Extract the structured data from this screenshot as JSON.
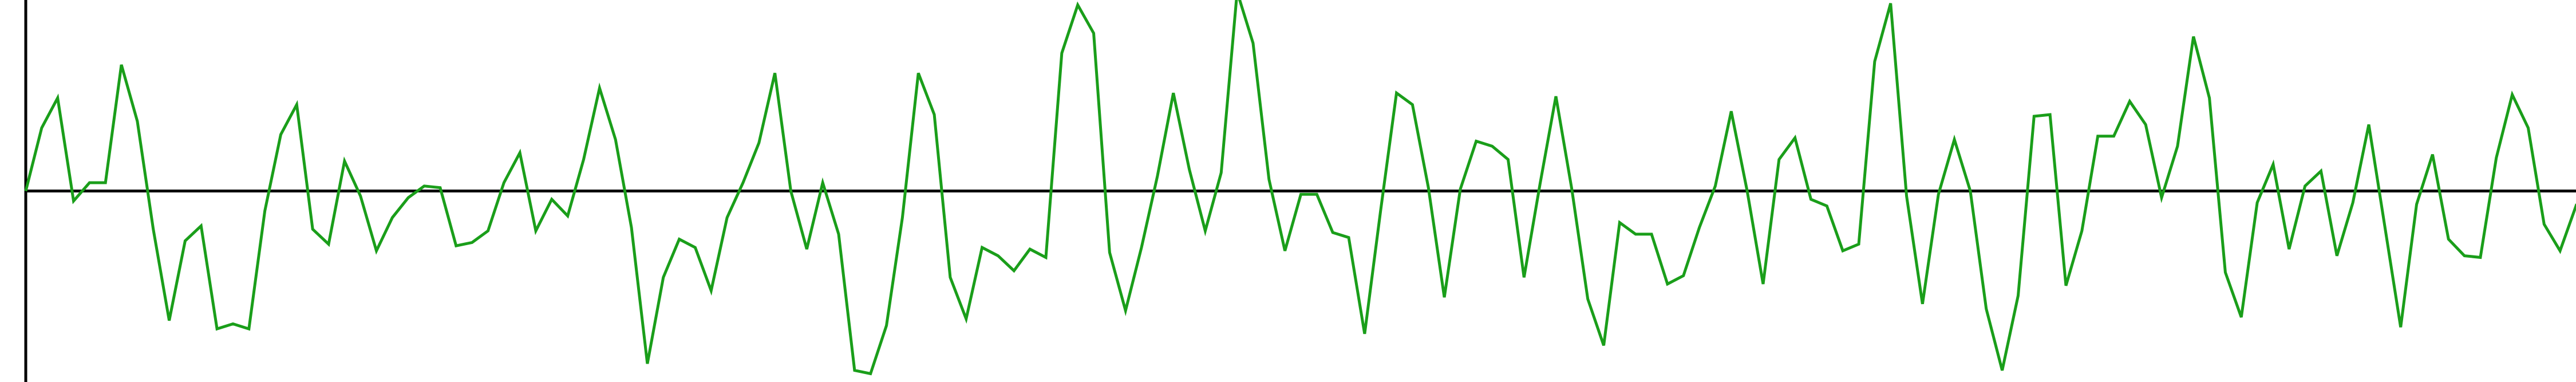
{
  "chart_data": {
    "type": "line",
    "title": "",
    "xlabel": "",
    "ylabel": "",
    "xlim": [
      0,
      160
    ],
    "ylim": [
      -1.15,
      1.15
    ],
    "grid": false,
    "legend": "none",
    "zero_line": true,
    "series": [
      {
        "color": "#1a9e1a",
        "y": [
          0.0,
          0.38,
          0.56,
          -0.06,
          0.05,
          0.05,
          0.76,
          0.42,
          -0.23,
          -0.78,
          -0.3,
          -0.21,
          -0.83,
          -0.8,
          -0.83,
          -0.12,
          0.34,
          0.52,
          -0.23,
          -0.32,
          0.18,
          -0.03,
          -0.36,
          -0.16,
          -0.04,
          0.03,
          0.02,
          -0.33,
          -0.31,
          -0.24,
          0.05,
          0.23,
          -0.24,
          -0.05,
          -0.15,
          0.19,
          0.62,
          0.31,
          -0.22,
          -1.04,
          -0.52,
          -0.29,
          -0.34,
          -0.6,
          -0.16,
          0.05,
          0.29,
          0.71,
          0.0,
          -0.35,
          0.05,
          -0.26,
          -1.08,
          -1.1,
          -0.81,
          -0.16,
          0.71,
          0.46,
          -0.52,
          -0.77,
          -0.34,
          -0.39,
          -0.48,
          -0.35,
          -0.4,
          0.83,
          1.12,
          0.95,
          -0.37,
          -0.72,
          -0.34,
          0.09,
          0.59,
          0.13,
          -0.24,
          0.11,
          1.2,
          0.89,
          0.07,
          -0.36,
          -0.02,
          -0.02,
          -0.25,
          -0.28,
          -0.86,
          -0.12,
          0.59,
          0.52,
          0.02,
          -0.64,
          0.01,
          0.3,
          0.27,
          0.19,
          -0.52,
          0.04,
          0.57,
          0.01,
          -0.65,
          -0.93,
          -0.19,
          -0.26,
          -0.26,
          -0.56,
          -0.51,
          -0.22,
          0.03,
          0.48,
          0.0,
          -0.56,
          0.19,
          0.32,
          -0.05,
          -0.09,
          -0.36,
          -0.32,
          0.78,
          1.13,
          -0.03,
          -0.68,
          -0.02,
          0.31,
          0.0,
          -0.71,
          -1.08,
          -0.63,
          0.45,
          0.46,
          -0.57,
          -0.24,
          0.33,
          0.33,
          0.54,
          0.4,
          -0.04,
          0.27,
          0.93,
          0.56,
          -0.49,
          -0.76,
          -0.07,
          0.16,
          -0.35,
          0.03,
          0.12,
          -0.39,
          -0.07,
          0.4,
          -0.21,
          -0.82,
          -0.08,
          0.22,
          -0.29,
          -0.39,
          -0.4,
          0.2,
          0.58,
          0.38,
          -0.2,
          -0.36,
          -0.09,
          -0.18,
          -0.1,
          -0.42
        ]
      }
    ]
  }
}
